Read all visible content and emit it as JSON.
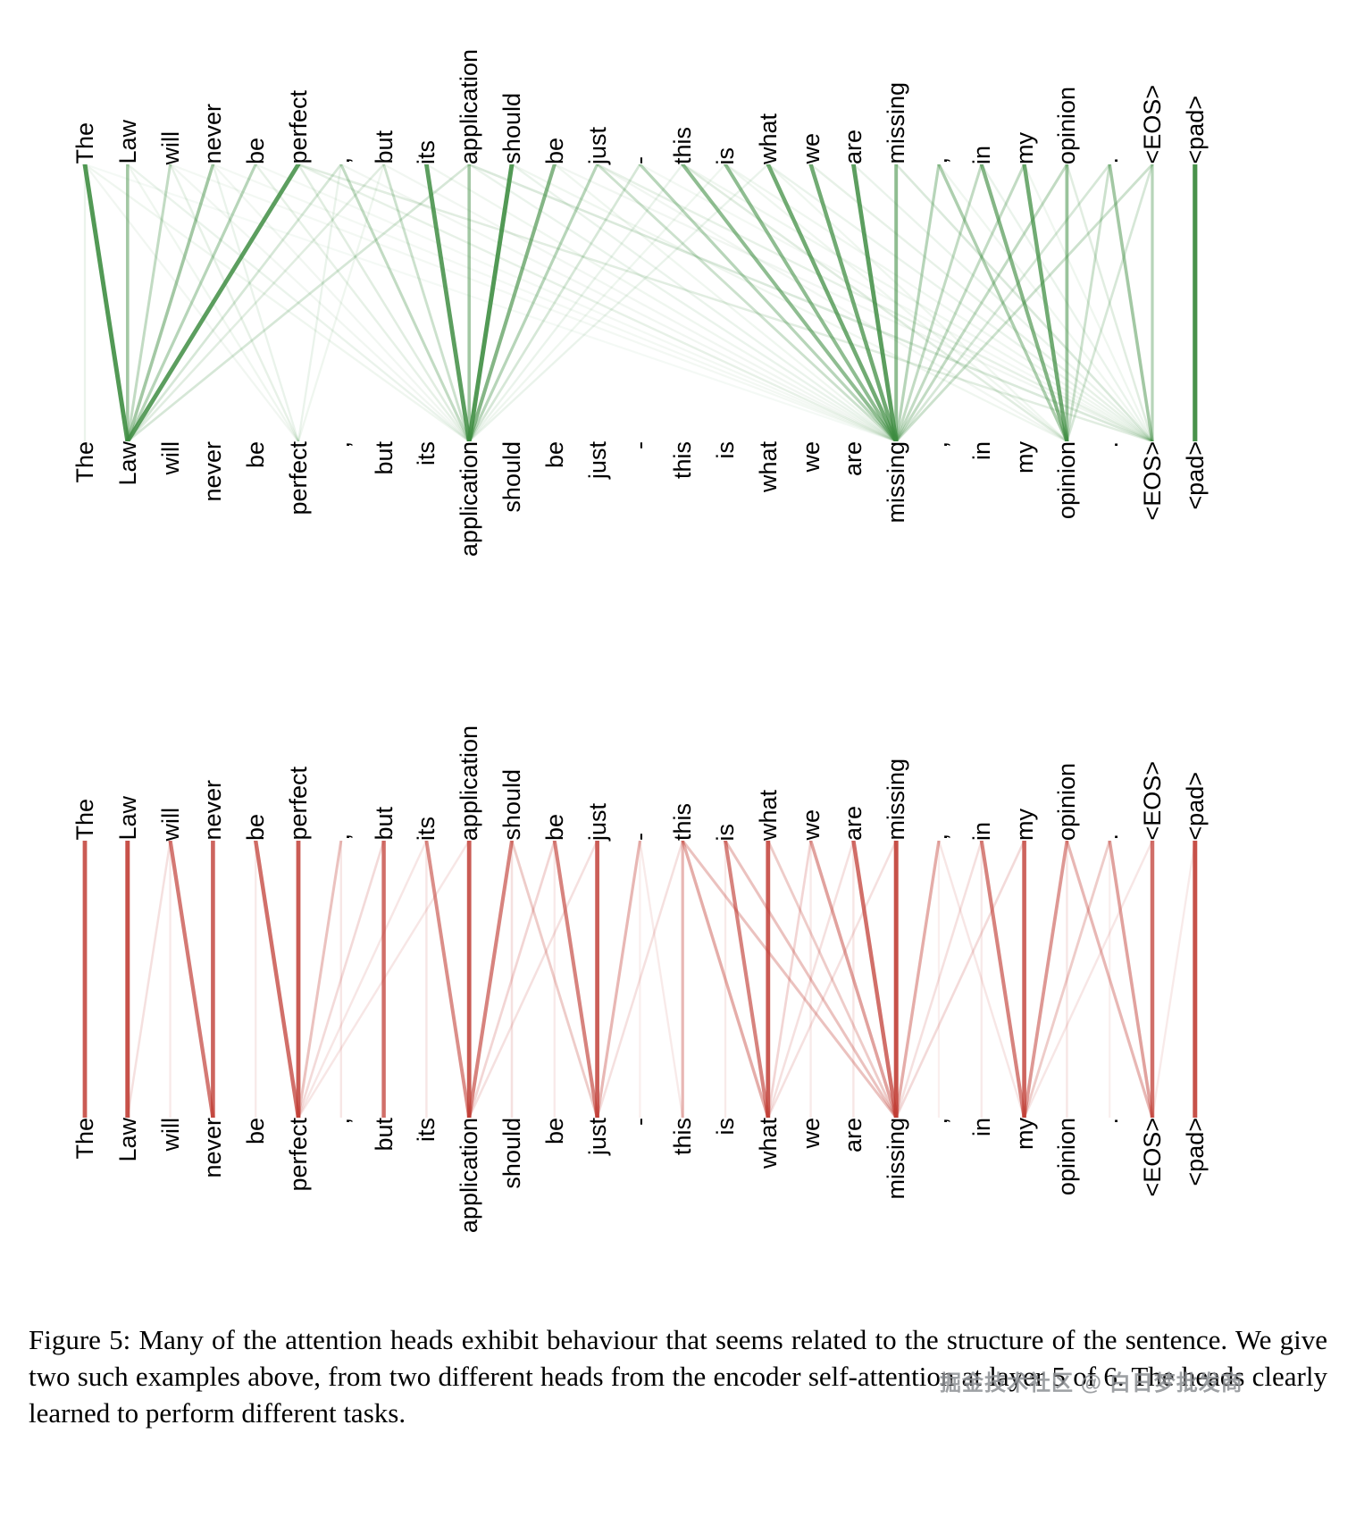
{
  "figure": {
    "caption": "Figure 5: Many of the attention heads exhibit behaviour that seems related to the structure of the sentence. We give two such examples above, from two different heads from the encoder self-attention at layer 5 of 6. The heads clearly learned to perform different tasks."
  },
  "watermark": {
    "text": "掘金技术社区 @ 白日梦批发商"
  },
  "chart_data": [
    {
      "type": "attention-bipartite",
      "name": "encoder-self-attention-head-green",
      "color": "#3d8c40",
      "tokens": [
        "The",
        "Law",
        "will",
        "never",
        "be",
        "perfect",
        ",",
        "but",
        "its",
        "application",
        "should",
        "be",
        "just",
        "-",
        "this",
        "is",
        "what",
        "we",
        "are",
        "missing",
        ",",
        "in",
        "my",
        "opinion",
        ".",
        "<EOS>",
        "<pad>"
      ],
      "edges": [
        [
          0,
          1,
          0.85
        ],
        [
          5,
          1,
          0.8
        ],
        [
          10,
          9,
          0.85
        ],
        [
          8,
          9,
          0.8
        ],
        [
          18,
          19,
          0.8
        ],
        [
          16,
          19,
          0.7
        ],
        [
          17,
          19,
          0.7
        ],
        [
          22,
          23,
          0.7
        ],
        [
          21,
          23,
          0.6
        ],
        [
          11,
          9,
          0.6
        ],
        [
          14,
          19,
          0.55
        ],
        [
          15,
          19,
          0.55
        ],
        [
          19,
          19,
          0.55
        ],
        [
          23,
          23,
          0.5
        ],
        [
          9,
          9,
          0.45
        ],
        [
          1,
          1,
          0.45
        ],
        [
          3,
          1,
          0.45
        ],
        [
          24,
          25,
          0.45
        ],
        [
          20,
          23,
          0.4
        ],
        [
          4,
          1,
          0.35
        ],
        [
          12,
          9,
          0.35
        ],
        [
          13,
          19,
          0.35
        ],
        [
          20,
          19,
          0.35
        ],
        [
          25,
          25,
          0.35
        ],
        [
          2,
          1,
          0.3
        ],
        [
          6,
          9,
          0.3
        ],
        [
          21,
          19,
          0.3
        ],
        [
          22,
          19,
          0.3
        ],
        [
          23,
          19,
          0.3
        ],
        [
          7,
          9,
          0.25
        ],
        [
          12,
          19,
          0.25
        ],
        [
          25,
          19,
          0.25
        ],
        [
          24,
          23,
          0.25
        ],
        [
          6,
          1,
          0.2
        ],
        [
          13,
          9,
          0.2
        ],
        [
          9,
          1,
          0.2
        ],
        [
          24,
          19,
          0.2
        ],
        [
          25,
          23,
          0.2
        ],
        [
          9,
          25,
          0.18
        ],
        [
          19,
          25,
          0.18
        ],
        [
          5,
          9,
          0.15
        ],
        [
          7,
          1,
          0.15
        ],
        [
          14,
          23,
          0.15
        ],
        [
          5,
          25,
          0.15
        ],
        [
          23,
          25,
          0.15
        ],
        [
          2,
          5,
          0.12
        ],
        [
          4,
          9,
          0.12
        ],
        [
          5,
          19,
          0.12
        ],
        [
          12,
          25,
          0.12
        ],
        [
          17,
          25,
          0.12
        ],
        [
          0,
          0,
          0.1
        ],
        [
          3,
          5,
          0.1
        ],
        [
          6,
          5,
          0.1
        ],
        [
          14,
          9,
          0.1
        ],
        [
          16,
          9,
          0.1
        ],
        [
          1,
          9,
          0.1
        ],
        [
          10,
          19,
          0.1
        ],
        [
          9,
          19,
          0.1
        ],
        [
          18,
          25,
          0.1
        ],
        [
          21,
          25,
          0.1
        ],
        [
          16,
          25,
          0.1
        ],
        [
          0,
          9,
          0.08
        ],
        [
          1,
          5,
          0.08
        ],
        [
          7,
          5,
          0.08
        ],
        [
          15,
          9,
          0.08
        ],
        [
          11,
          19,
          0.08
        ],
        [
          8,
          19,
          0.08
        ],
        [
          10,
          23,
          0.08
        ],
        [
          15,
          23,
          0.08
        ],
        [
          16,
          23,
          0.08
        ],
        [
          14,
          25,
          0.08
        ],
        [
          22,
          25,
          0.08
        ],
        [
          20,
          25,
          0.08
        ],
        [
          15,
          25,
          0.08
        ],
        [
          0,
          5,
          0.07
        ],
        [
          2,
          9,
          0.07
        ],
        [
          3,
          9,
          0.07
        ],
        [
          6,
          19,
          0.07
        ],
        [
          7,
          19,
          0.07
        ],
        [
          12,
          23,
          0.07
        ],
        [
          11,
          25,
          0.07
        ],
        [
          2,
          19,
          0.06
        ],
        [
          4,
          19,
          0.06
        ],
        [
          3,
          19,
          0.06
        ],
        [
          13,
          25,
          0.06
        ],
        [
          0,
          19,
          0.05
        ],
        [
          26,
          26,
          0.9
        ]
      ]
    },
    {
      "type": "attention-bipartite",
      "name": "encoder-self-attention-head-red",
      "color": "#c03b33",
      "tokens": [
        "The",
        "Law",
        "will",
        "never",
        "be",
        "perfect",
        ",",
        "but",
        "its",
        "application",
        "should",
        "be",
        "just",
        "-",
        "this",
        "is",
        "what",
        "we",
        "are",
        "missing",
        ",",
        "in",
        "my",
        "opinion",
        ".",
        "<EOS>",
        "<pad>"
      ],
      "edges": [
        [
          26,
          26,
          0.85
        ],
        [
          19,
          19,
          0.85
        ],
        [
          1,
          1,
          0.85
        ],
        [
          0,
          0,
          0.8
        ],
        [
          9,
          9,
          0.8
        ],
        [
          16,
          16,
          0.8
        ],
        [
          5,
          5,
          0.8
        ],
        [
          12,
          12,
          0.78
        ],
        [
          3,
          3,
          0.75
        ],
        [
          22,
          22,
          0.75
        ],
        [
          7,
          7,
          0.7
        ],
        [
          25,
          25,
          0.7
        ],
        [
          18,
          19,
          0.7
        ],
        [
          4,
          5,
          0.7
        ],
        [
          2,
          3,
          0.65
        ],
        [
          11,
          12,
          0.6
        ],
        [
          15,
          16,
          0.6
        ],
        [
          21,
          22,
          0.6
        ],
        [
          10,
          9,
          0.6
        ],
        [
          8,
          9,
          0.55
        ],
        [
          23,
          22,
          0.5
        ],
        [
          17,
          19,
          0.45
        ],
        [
          24,
          25,
          0.45
        ],
        [
          20,
          19,
          0.4
        ],
        [
          14,
          16,
          0.4
        ],
        [
          14,
          14,
          0.35
        ],
        [
          13,
          12,
          0.35
        ],
        [
          23,
          25,
          0.35
        ],
        [
          6,
          5,
          0.3
        ],
        [
          15,
          19,
          0.3
        ],
        [
          14,
          19,
          0.3
        ],
        [
          16,
          19,
          0.25
        ],
        [
          10,
          12,
          0.25
        ],
        [
          24,
          22,
          0.25
        ],
        [
          11,
          9,
          0.2
        ],
        [
          17,
          16,
          0.2
        ],
        [
          22,
          19,
          0.18
        ],
        [
          7,
          5,
          0.18
        ],
        [
          2,
          1,
          0.15
        ],
        [
          21,
          19,
          0.15
        ],
        [
          19,
          16,
          0.15
        ],
        [
          14,
          12,
          0.15
        ],
        [
          10,
          10,
          0.15
        ],
        [
          12,
          9,
          0.15
        ],
        [
          18,
          16,
          0.15
        ],
        [
          8,
          5,
          0.12
        ],
        [
          9,
          5,
          0.12
        ],
        [
          20,
          22,
          0.12
        ],
        [
          25,
          22,
          0.12
        ],
        [
          6,
          6,
          0.12
        ],
        [
          8,
          8,
          0.12
        ],
        [
          18,
          18,
          0.12
        ],
        [
          23,
          23,
          0.12
        ],
        [
          2,
          2,
          0.1
        ],
        [
          4,
          4,
          0.1
        ],
        [
          11,
          11,
          0.1
        ],
        [
          15,
          15,
          0.1
        ],
        [
          17,
          17,
          0.1
        ],
        [
          21,
          21,
          0.1
        ],
        [
          26,
          25,
          0.1
        ],
        [
          13,
          14,
          0.1
        ],
        [
          13,
          13,
          0.08
        ],
        [
          20,
          20,
          0.08
        ],
        [
          24,
          24,
          0.08
        ]
      ]
    }
  ]
}
